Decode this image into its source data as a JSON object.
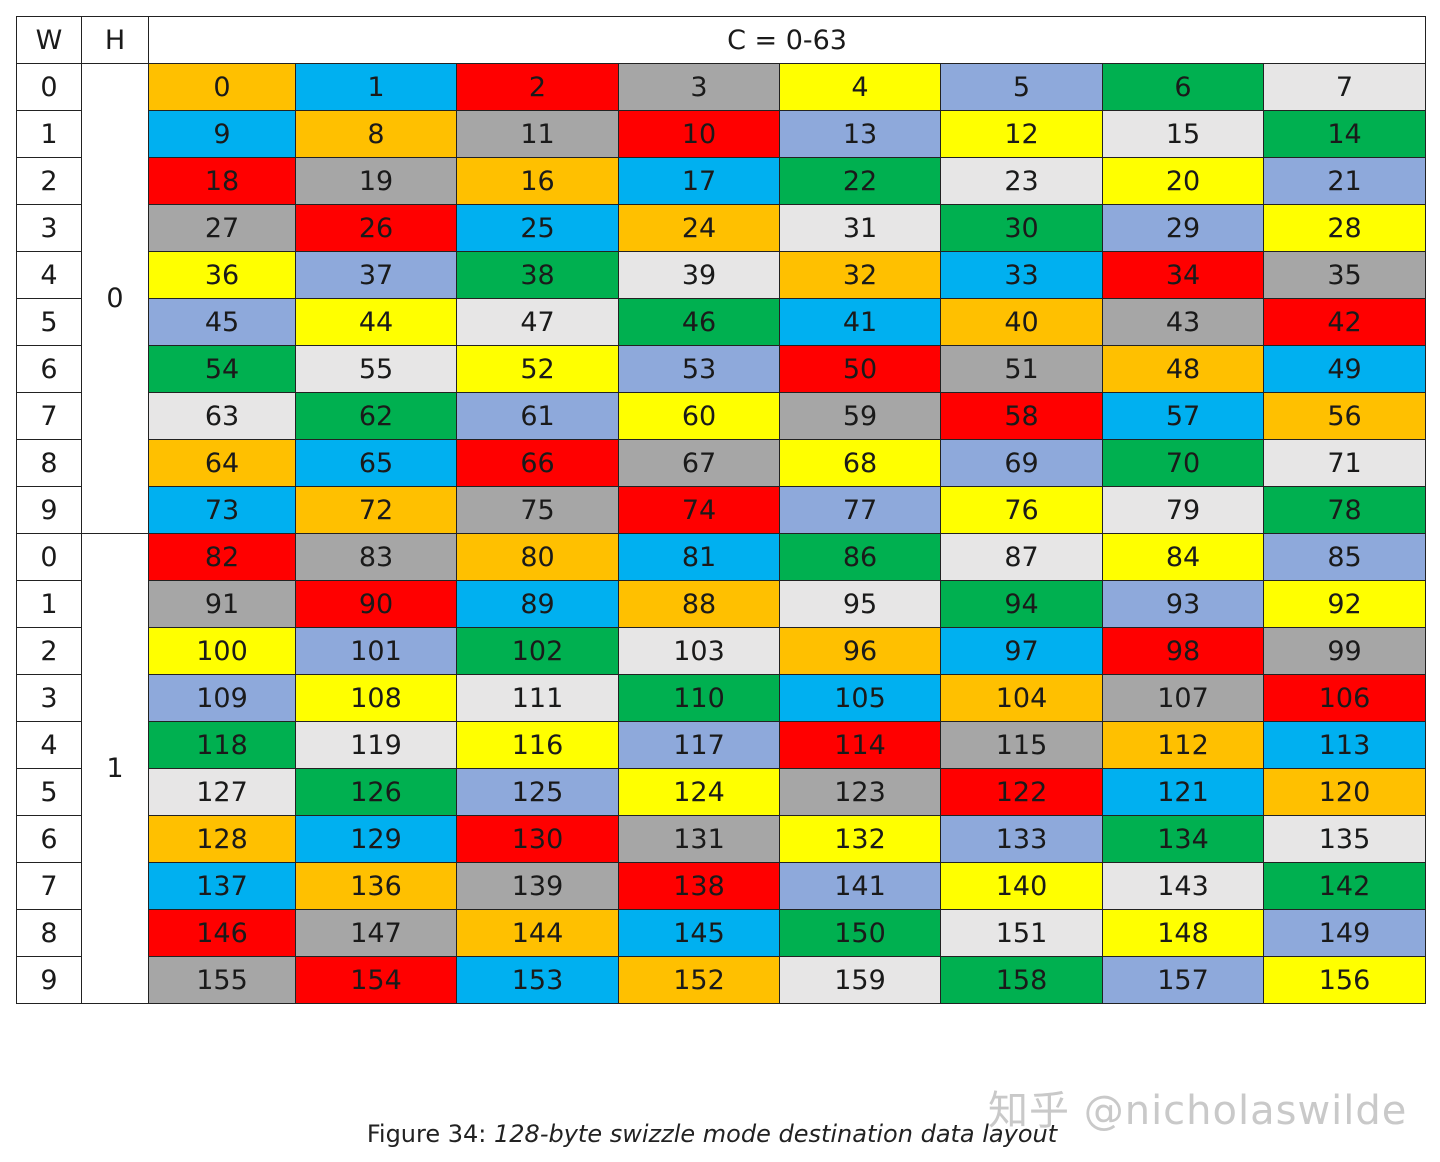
{
  "header": {
    "w": "W",
    "h": "H",
    "c": "C = 0-63"
  },
  "rows": [
    {
      "w": "0",
      "h": "0",
      "cells": [
        [
          "0",
          "orange"
        ],
        [
          "1",
          "blue"
        ],
        [
          "2",
          "red"
        ],
        [
          "3",
          "gray"
        ],
        [
          "4",
          "yellow"
        ],
        [
          "5",
          "lav"
        ],
        [
          "6",
          "green"
        ],
        [
          "7",
          "light"
        ]
      ]
    },
    {
      "w": "1",
      "cells": [
        [
          "9",
          "blue"
        ],
        [
          "8",
          "orange"
        ],
        [
          "11",
          "gray"
        ],
        [
          "10",
          "red"
        ],
        [
          "13",
          "lav"
        ],
        [
          "12",
          "yellow"
        ],
        [
          "15",
          "light"
        ],
        [
          "14",
          "green"
        ]
      ]
    },
    {
      "w": "2",
      "cells": [
        [
          "18",
          "red"
        ],
        [
          "19",
          "gray"
        ],
        [
          "16",
          "orange"
        ],
        [
          "17",
          "blue"
        ],
        [
          "22",
          "green"
        ],
        [
          "23",
          "light"
        ],
        [
          "20",
          "yellow"
        ],
        [
          "21",
          "lav"
        ]
      ]
    },
    {
      "w": "3",
      "cells": [
        [
          "27",
          "gray"
        ],
        [
          "26",
          "red"
        ],
        [
          "25",
          "blue"
        ],
        [
          "24",
          "orange"
        ],
        [
          "31",
          "light"
        ],
        [
          "30",
          "green"
        ],
        [
          "29",
          "lav"
        ],
        [
          "28",
          "yellow"
        ]
      ]
    },
    {
      "w": "4",
      "cells": [
        [
          "36",
          "yellow"
        ],
        [
          "37",
          "lav"
        ],
        [
          "38",
          "green"
        ],
        [
          "39",
          "light"
        ],
        [
          "32",
          "orange"
        ],
        [
          "33",
          "blue"
        ],
        [
          "34",
          "red"
        ],
        [
          "35",
          "gray"
        ]
      ]
    },
    {
      "w": "5",
      "cells": [
        [
          "45",
          "lav"
        ],
        [
          "44",
          "yellow"
        ],
        [
          "47",
          "light"
        ],
        [
          "46",
          "green"
        ],
        [
          "41",
          "blue"
        ],
        [
          "40",
          "orange"
        ],
        [
          "43",
          "gray"
        ],
        [
          "42",
          "red"
        ]
      ]
    },
    {
      "w": "6",
      "cells": [
        [
          "54",
          "green"
        ],
        [
          "55",
          "light"
        ],
        [
          "52",
          "yellow"
        ],
        [
          "53",
          "lav"
        ],
        [
          "50",
          "red"
        ],
        [
          "51",
          "gray"
        ],
        [
          "48",
          "orange"
        ],
        [
          "49",
          "blue"
        ]
      ]
    },
    {
      "w": "7",
      "cells": [
        [
          "63",
          "light"
        ],
        [
          "62",
          "green"
        ],
        [
          "61",
          "lav"
        ],
        [
          "60",
          "yellow"
        ],
        [
          "59",
          "gray"
        ],
        [
          "58",
          "red"
        ],
        [
          "57",
          "blue"
        ],
        [
          "56",
          "orange"
        ]
      ]
    },
    {
      "w": "8",
      "cells": [
        [
          "64",
          "orange"
        ],
        [
          "65",
          "blue"
        ],
        [
          "66",
          "red"
        ],
        [
          "67",
          "gray"
        ],
        [
          "68",
          "yellow"
        ],
        [
          "69",
          "lav"
        ],
        [
          "70",
          "green"
        ],
        [
          "71",
          "light"
        ]
      ]
    },
    {
      "w": "9",
      "cells": [
        [
          "73",
          "blue"
        ],
        [
          "72",
          "orange"
        ],
        [
          "75",
          "gray"
        ],
        [
          "74",
          "red"
        ],
        [
          "77",
          "lav"
        ],
        [
          "76",
          "yellow"
        ],
        [
          "79",
          "light"
        ],
        [
          "78",
          "green"
        ]
      ]
    },
    {
      "w": "0",
      "h": "1",
      "cells": [
        [
          "82",
          "red"
        ],
        [
          "83",
          "gray"
        ],
        [
          "80",
          "orange"
        ],
        [
          "81",
          "blue"
        ],
        [
          "86",
          "green"
        ],
        [
          "87",
          "light"
        ],
        [
          "84",
          "yellow"
        ],
        [
          "85",
          "lav"
        ]
      ]
    },
    {
      "w": "1",
      "cells": [
        [
          "91",
          "gray"
        ],
        [
          "90",
          "red"
        ],
        [
          "89",
          "blue"
        ],
        [
          "88",
          "orange"
        ],
        [
          "95",
          "light"
        ],
        [
          "94",
          "green"
        ],
        [
          "93",
          "lav"
        ],
        [
          "92",
          "yellow"
        ]
      ]
    },
    {
      "w": "2",
      "cells": [
        [
          "100",
          "yellow"
        ],
        [
          "101",
          "lav"
        ],
        [
          "102",
          "green"
        ],
        [
          "103",
          "light"
        ],
        [
          "96",
          "orange"
        ],
        [
          "97",
          "blue"
        ],
        [
          "98",
          "red"
        ],
        [
          "99",
          "gray"
        ]
      ]
    },
    {
      "w": "3",
      "cells": [
        [
          "109",
          "lav"
        ],
        [
          "108",
          "yellow"
        ],
        [
          "111",
          "light"
        ],
        [
          "110",
          "green"
        ],
        [
          "105",
          "blue"
        ],
        [
          "104",
          "orange"
        ],
        [
          "107",
          "gray"
        ],
        [
          "106",
          "red"
        ]
      ]
    },
    {
      "w": "4",
      "cells": [
        [
          "118",
          "green"
        ],
        [
          "119",
          "light"
        ],
        [
          "116",
          "yellow"
        ],
        [
          "117",
          "lav"
        ],
        [
          "114",
          "red"
        ],
        [
          "115",
          "gray"
        ],
        [
          "112",
          "orange"
        ],
        [
          "113",
          "blue"
        ]
      ]
    },
    {
      "w": "5",
      "cells": [
        [
          "127",
          "light"
        ],
        [
          "126",
          "green"
        ],
        [
          "125",
          "lav"
        ],
        [
          "124",
          "yellow"
        ],
        [
          "123",
          "gray"
        ],
        [
          "122",
          "red"
        ],
        [
          "121",
          "blue"
        ],
        [
          "120",
          "orange"
        ]
      ]
    },
    {
      "w": "6",
      "cells": [
        [
          "128",
          "orange"
        ],
        [
          "129",
          "blue"
        ],
        [
          "130",
          "red"
        ],
        [
          "131",
          "gray"
        ],
        [
          "132",
          "yellow"
        ],
        [
          "133",
          "lav"
        ],
        [
          "134",
          "green"
        ],
        [
          "135",
          "light"
        ]
      ]
    },
    {
      "w": "7",
      "cells": [
        [
          "137",
          "blue"
        ],
        [
          "136",
          "orange"
        ],
        [
          "139",
          "gray"
        ],
        [
          "138",
          "red"
        ],
        [
          "141",
          "lav"
        ],
        [
          "140",
          "yellow"
        ],
        [
          "143",
          "light"
        ],
        [
          "142",
          "green"
        ]
      ]
    },
    {
      "w": "8",
      "cells": [
        [
          "146",
          "red"
        ],
        [
          "147",
          "gray"
        ],
        [
          "144",
          "orange"
        ],
        [
          "145",
          "blue"
        ],
        [
          "150",
          "green"
        ],
        [
          "151",
          "light"
        ],
        [
          "148",
          "yellow"
        ],
        [
          "149",
          "lav"
        ]
      ]
    },
    {
      "w": "9",
      "cells": [
        [
          "155",
          "gray"
        ],
        [
          "154",
          "red"
        ],
        [
          "153",
          "blue"
        ],
        [
          "152",
          "orange"
        ],
        [
          "159",
          "light"
        ],
        [
          "158",
          "green"
        ],
        [
          "157",
          "lav"
        ],
        [
          "156",
          "yellow"
        ]
      ]
    }
  ],
  "colors": {
    "orange": "#FFC000",
    "blue": "#00B0F0",
    "red": "#FF0000",
    "gray": "#A6A6A6",
    "yellow": "#FFFF00",
    "lav": "#8EA9DB",
    "green": "#00B050",
    "light": "#E7E6E6"
  },
  "watermark": "知乎 @nicholaswilde",
  "caption": {
    "prefix": "Figure 34: ",
    "text": "128-byte swizzle mode destination data layout"
  }
}
